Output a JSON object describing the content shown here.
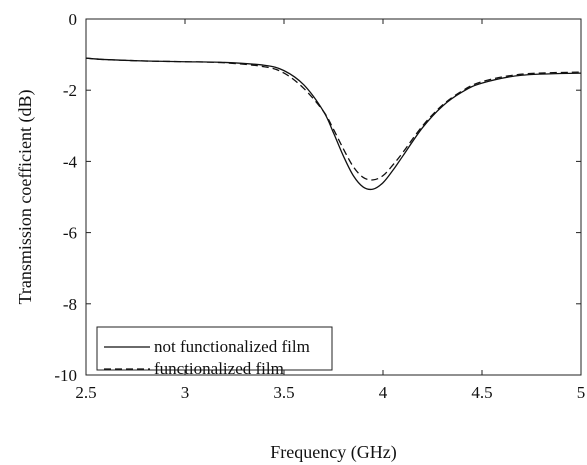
{
  "chart_data": {
    "type": "line",
    "xlabel": "Frequency (GHz)",
    "ylabel": "Transmission coefficient (dB)",
    "xlim": [
      2.5,
      5
    ],
    "ylim": [
      -10,
      0
    ],
    "xticks": [
      "2.5",
      "3",
      "3.5",
      "4",
      "4.5",
      "5"
    ],
    "yticks": [
      "0",
      "-2",
      "-4",
      "-6",
      "-8",
      "-10"
    ],
    "grid": false,
    "legend_position": "bottom-left",
    "series": [
      {
        "name": "not functionalized film",
        "line_style": "solid",
        "color": "#111111",
        "x": [
          2.5,
          2.6,
          2.8,
          3.0,
          3.2,
          3.4,
          3.5,
          3.6,
          3.7,
          3.75,
          3.8,
          3.85,
          3.9,
          3.95,
          4.0,
          4.05,
          4.1,
          4.2,
          4.3,
          4.4,
          4.5,
          4.7,
          5.0
        ],
        "y": [
          -1.1,
          -1.14,
          -1.18,
          -1.2,
          -1.22,
          -1.3,
          -1.45,
          -1.85,
          -2.6,
          -3.2,
          -3.85,
          -4.4,
          -4.72,
          -4.78,
          -4.6,
          -4.25,
          -3.85,
          -3.05,
          -2.45,
          -2.05,
          -1.8,
          -1.58,
          -1.52
        ]
      },
      {
        "name": "functionalized film",
        "line_style": "dashed",
        "color": "#111111",
        "x": [
          2.5,
          2.6,
          2.8,
          3.0,
          3.2,
          3.4,
          3.5,
          3.6,
          3.7,
          3.75,
          3.8,
          3.85,
          3.9,
          3.95,
          4.0,
          4.05,
          4.1,
          4.2,
          4.3,
          4.4,
          4.5,
          4.7,
          5.0
        ],
        "y": [
          -1.1,
          -1.14,
          -1.18,
          -1.2,
          -1.23,
          -1.34,
          -1.52,
          -1.95,
          -2.6,
          -3.1,
          -3.65,
          -4.15,
          -4.45,
          -4.52,
          -4.4,
          -4.1,
          -3.75,
          -3.0,
          -2.42,
          -2.02,
          -1.76,
          -1.55,
          -1.49
        ]
      }
    ]
  }
}
